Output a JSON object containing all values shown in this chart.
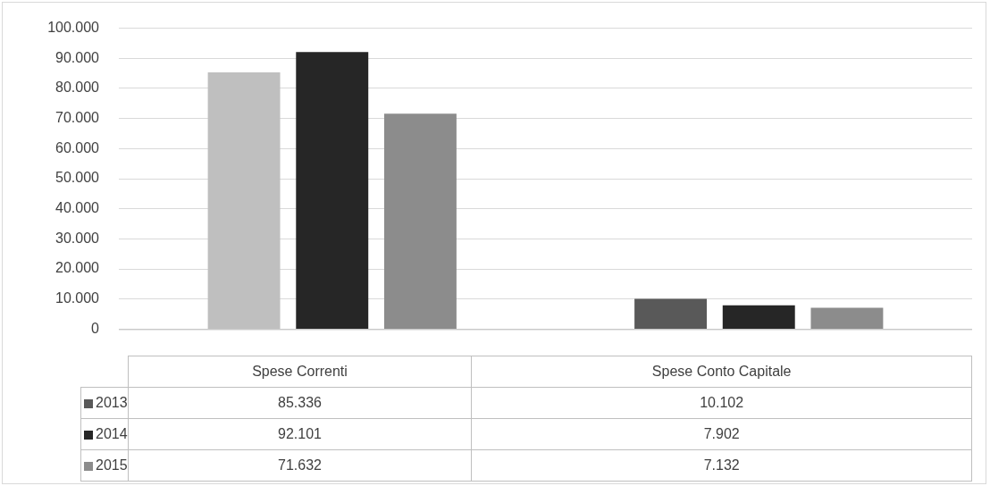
{
  "chart_data": {
    "type": "bar",
    "categories": [
      "Spese Correnti",
      "Spese Conto Capitale"
    ],
    "series": [
      {
        "name": "2013",
        "color": "#595959",
        "colors": [
          "#bfbfbf",
          "#595959"
        ],
        "values": [
          85336,
          10102
        ],
        "value_labels": [
          "85.336",
          "10.102"
        ]
      },
      {
        "name": "2014",
        "color": "#262626",
        "values": [
          92101,
          7902
        ],
        "value_labels": [
          "92.101",
          "7.902"
        ]
      },
      {
        "name": "2015",
        "color": "#8c8c8c",
        "values": [
          71632,
          7132
        ],
        "value_labels": [
          "71.632",
          "7.132"
        ]
      }
    ],
    "ylim": [
      0,
      100000
    ],
    "yticks": [
      0,
      {
        "value": 10000,
        "label": "10.000"
      },
      {
        "value": 20000,
        "label": "20.000"
      },
      {
        "value": 30000,
        "label": "30.000"
      },
      {
        "value": 40000,
        "label": "40.000"
      },
      {
        "value": 50000,
        "label": "50.000"
      },
      {
        "value": 60000,
        "label": "60.000"
      },
      {
        "value": 70000,
        "label": "70.000"
      },
      {
        "value": 80000,
        "label": "80.000"
      },
      {
        "value": 90000,
        "label": "90.000"
      },
      {
        "value": 100000,
        "label": "100.000"
      }
    ],
    "grid": "y",
    "legend": "bottom"
  }
}
